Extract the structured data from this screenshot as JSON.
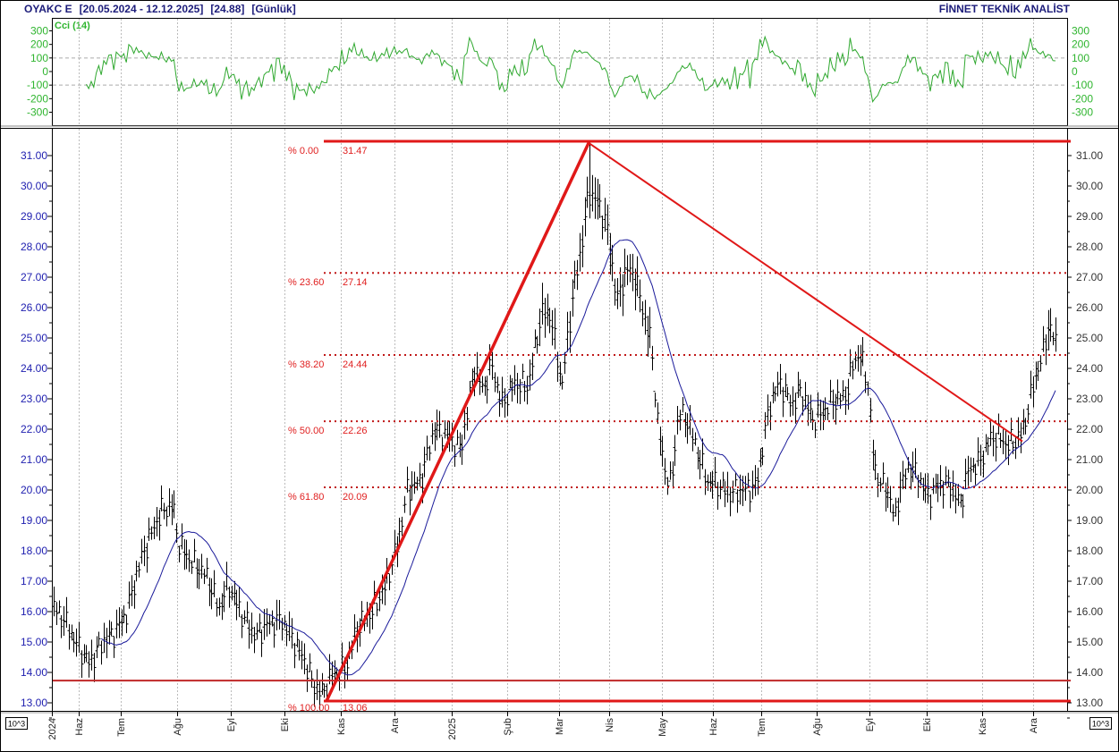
{
  "header": {
    "symbol": "OYAKC E",
    "range": "[20.05.2024 - 12.12.2025]",
    "last": "[24.88]",
    "period": "[Günlük]",
    "brand": "FİNNET TEKNİK ANALİST"
  },
  "colors": {
    "price_bars": "#000000",
    "moving_average": "#1a1a9a",
    "cci": "#2fa82f",
    "fibonacci": "#e01818",
    "trendline": "#e01818",
    "support": "#c02828",
    "left_axis": "#2020b0"
  },
  "chart_data": [
    {
      "type": "line",
      "title": "Cci (14)",
      "ylim": [
        -300,
        300
      ],
      "yticks": [
        "300",
        "200",
        "100",
        "0",
        "-100",
        "-200",
        "-300"
      ],
      "grid_lines_at": [
        100,
        -100
      ]
    },
    {
      "type": "ohlc",
      "ylim": [
        13,
        31
      ],
      "yticks": [
        "31.00",
        "30.00",
        "29.00",
        "28.00",
        "27.00",
        "26.00",
        "25.00",
        "24.00",
        "23.00",
        "22.00",
        "21.00",
        "20.00",
        "19.00",
        "18.00",
        "17.00",
        "16.00",
        "15.00",
        "14.00",
        "13.00"
      ],
      "scale_note": "10^3",
      "xticks": [
        "2024",
        "Haz",
        "Tem",
        "Ağu",
        "Eyl",
        "Eki",
        "Kas",
        "Ara",
        "2025",
        "Şub",
        "Mar",
        "Nis",
        "May",
        "Haz",
        "Tem",
        "Ağu",
        "Eyl",
        "Eki",
        "Kas",
        "Ara"
      ],
      "approx_closes": [
        16.2,
        15.7,
        14.9,
        14.3,
        15.0,
        15.3,
        16.0,
        17.5,
        18.3,
        19.3,
        19.5,
        18.2,
        17.6,
        17.2,
        16.1,
        16.9,
        15.9,
        15.2,
        15.6,
        15.7,
        15.2,
        14.4,
        13.6,
        13.3,
        13.9,
        14.1,
        15.5,
        16.0,
        16.8,
        18.3,
        20.0,
        20.3,
        22.0,
        21.8,
        21.3,
        24.0,
        23.3,
        24.1,
        22.8,
        23.5,
        23.4,
        25.8,
        25.8,
        23.4,
        26.4,
        27.7,
        29.8,
        29.5,
        28.7,
        26.2,
        27.3,
        27.0,
        25.7,
        24.8,
        22.2,
        20.8,
        20.1,
        22.5,
        22.3,
        21.4,
        20.3,
        20.2,
        19.9,
        20.0,
        20.1,
        21.9,
        23.0,
        23.5,
        22.8,
        23.3,
        22.3,
        22.5,
        22.9,
        23.1,
        24.3,
        24.4,
        23.5,
        20.7,
        20.2,
        19.8,
        18.9,
        20.0,
        20.8,
        20.4,
        19.8,
        20.2,
        20.2,
        19.5,
        20.7,
        20.9,
        21.6,
        21.8,
        21.5,
        21.6,
        21.9,
        22.8,
        23.8,
        24.4,
        25.4,
        24.88
      ],
      "fibonacci": [
        {
          "pct": "% 0.00",
          "value": "31.47",
          "price": 31.47
        },
        {
          "pct": "% 23.60",
          "value": "27.14",
          "price": 27.14
        },
        {
          "pct": "% 38.20",
          "value": "24.44",
          "price": 24.44
        },
        {
          "pct": "% 50.00",
          "value": "22.26",
          "price": 22.26
        },
        {
          "pct": "% 61.80",
          "value": "20.09",
          "price": 20.09
        },
        {
          "pct": "% 100.00",
          "value": "13.06",
          "price": 13.06
        }
      ],
      "support_level": 13.73,
      "trendlines": [
        {
          "from": {
            "price": 13.06,
            "date": "Kas 2024"
          },
          "to": {
            "price": 31.47,
            "date": "Mar 2025"
          }
        },
        {
          "from": {
            "price": 31.4,
            "date": "Mar 2025"
          },
          "to": {
            "price": 21.6,
            "date": "Kas 2025"
          }
        }
      ],
      "moving_average": "blue line"
    }
  ]
}
